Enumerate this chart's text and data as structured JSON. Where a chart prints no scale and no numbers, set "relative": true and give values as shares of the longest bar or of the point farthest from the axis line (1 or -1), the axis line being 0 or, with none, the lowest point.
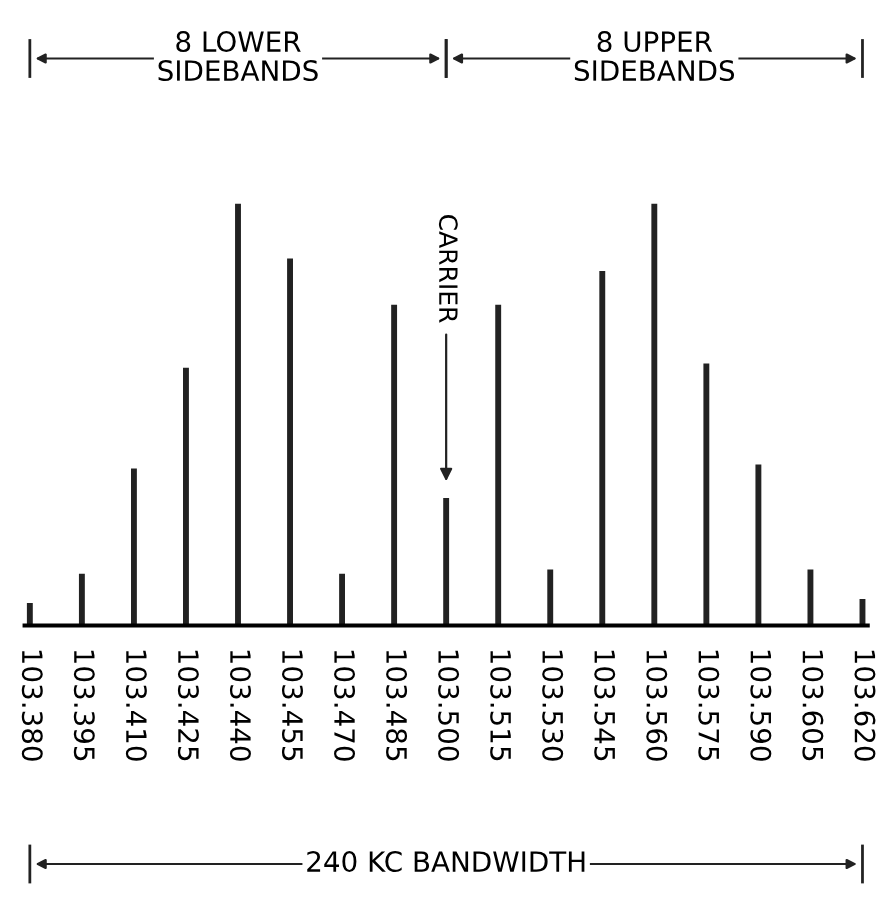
{
  "chart_data": {
    "type": "bar",
    "relative": true,
    "categories": [
      "103.380",
      "103.395",
      "103.410",
      "103.425",
      "103.440",
      "103.455",
      "103.470",
      "103.485",
      "103.500",
      "103.515",
      "103.530",
      "103.545",
      "103.560",
      "103.575",
      "103.590",
      "103.605",
      "103.620"
    ],
    "values": [
      0.05,
      0.12,
      0.37,
      0.61,
      1,
      0.87,
      0.12,
      0.76,
      0.3,
      0.76,
      0.13,
      0.84,
      1,
      0.62,
      0.38,
      0.13,
      0.06
    ],
    "color": "#222222",
    "annotations": [
      "8 LOWER\nSIDEBANDS",
      "8 UPPER\nSIDEBANDS",
      "240 KC BANDWIDTH",
      {
        "text": "CARRIER",
        "x": "103.500"
      }
    ],
    "grid": false,
    "legend": false
  }
}
